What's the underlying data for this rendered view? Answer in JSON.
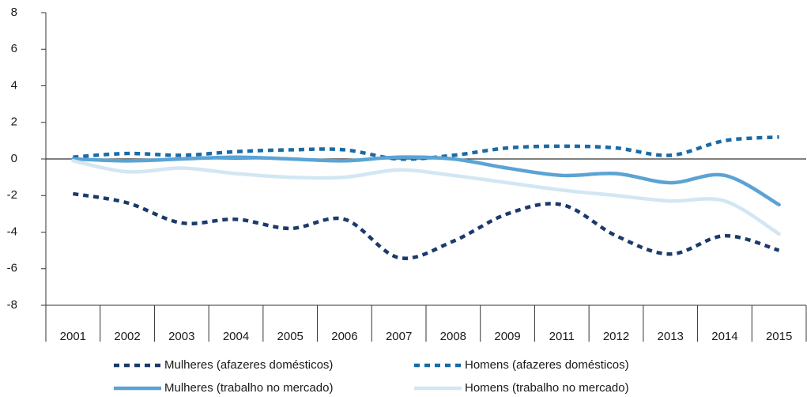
{
  "chart_data": {
    "type": "line",
    "categories": [
      "2001",
      "2002",
      "2003",
      "2004",
      "2005",
      "2006",
      "2007",
      "2008",
      "2009",
      "2011",
      "2012",
      "2013",
      "2014",
      "2015"
    ],
    "series": [
      {
        "name": "Mulheres (afazeres domésticos)",
        "color": "#1b3a6b",
        "dashed": true,
        "values": [
          -1.9,
          -2.4,
          -3.5,
          -3.3,
          -3.8,
          -3.3,
          -5.4,
          -4.5,
          -3.0,
          -2.5,
          -4.2,
          -5.2,
          -4.2,
          -5.0
        ]
      },
      {
        "name": "Homens (afazeres domésticos)",
        "color": "#1a6aa6",
        "dashed": true,
        "values": [
          0.1,
          0.3,
          0.2,
          0.4,
          0.5,
          0.5,
          0.0,
          0.2,
          0.6,
          0.7,
          0.6,
          0.2,
          1.0,
          1.2
        ]
      },
      {
        "name": "Mulheres (trabalho no mercado)",
        "color": "#5aa3d4",
        "dashed": false,
        "values": [
          0.0,
          -0.1,
          0.0,
          0.1,
          0.0,
          -0.1,
          0.1,
          0.0,
          -0.5,
          -0.9,
          -0.8,
          -1.3,
          -0.9,
          -2.5
        ]
      },
      {
        "name": "Homens (trabalho no mercado)",
        "color": "#d2e6f3",
        "dashed": false,
        "values": [
          -0.1,
          -0.7,
          -0.5,
          -0.8,
          -1.0,
          -1.0,
          -0.6,
          -0.9,
          -1.3,
          -1.7,
          -2.0,
          -2.3,
          -2.3,
          -4.1
        ]
      }
    ],
    "ylim": [
      -8,
      8
    ],
    "yticks": [
      -8,
      -6,
      -4,
      -2,
      0,
      2,
      4,
      6,
      8
    ],
    "legend": "bottom"
  }
}
